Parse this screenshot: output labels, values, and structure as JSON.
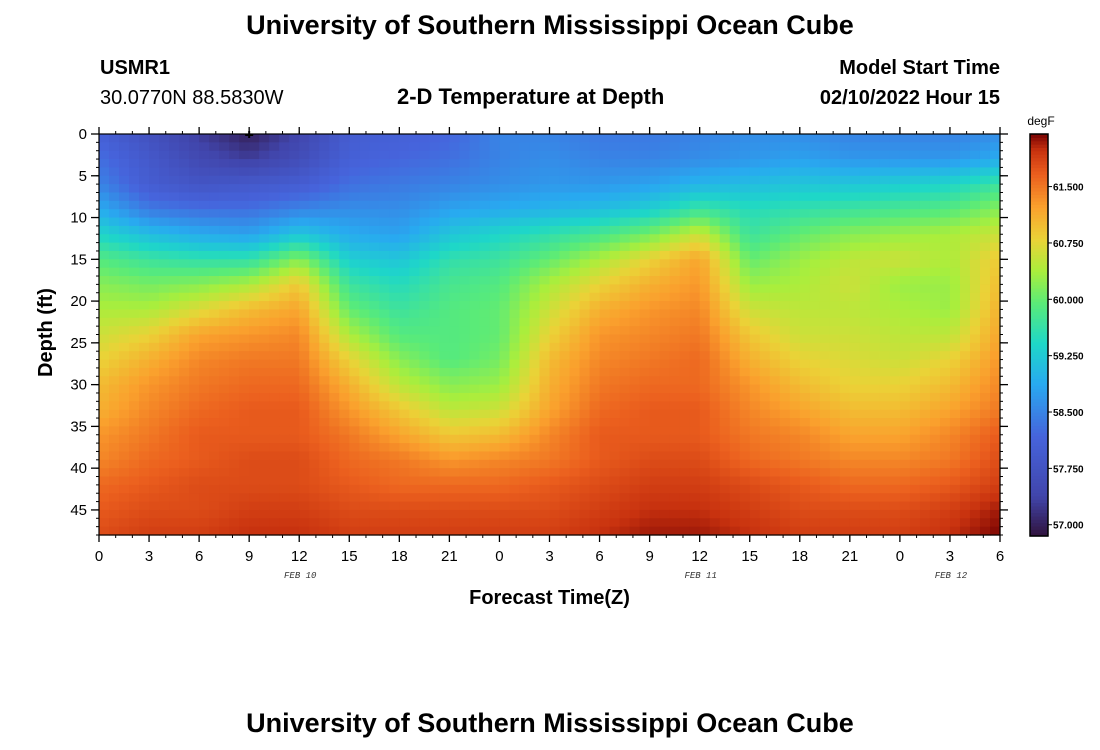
{
  "page": {
    "title_top": "University of Southern Mississippi Ocean Cube",
    "title_bottom": "University of Southern Mississippi Ocean Cube",
    "station_id": "USMR1",
    "station_coords": "30.0770N  88.5830W",
    "plot_title": "2-D Temperature at Depth",
    "model_start_label": "Model Start Time",
    "model_start_value": "02/10/2022 Hour 15"
  },
  "colors": {
    "background": "#ffffff",
    "frame": "#000000"
  },
  "chart_data": {
    "type": "heatmap",
    "title": "2-D Temperature at Depth",
    "xlabel": "Forecast Time(Z)",
    "ylabel": "Depth (ft)",
    "x_ticks": [
      "0",
      "3",
      "6",
      "9",
      "12",
      "15",
      "18",
      "21",
      "0",
      "3",
      "6",
      "9",
      "12",
      "15",
      "18",
      "21",
      "0",
      "3",
      "6"
    ],
    "x_range_hours": [
      0,
      54
    ],
    "date_labels": [
      {
        "text": "FEB 10",
        "hour": 12
      },
      {
        "text": "FEB 11",
        "hour": 36
      },
      {
        "text": "FEB 12",
        "hour": 51
      }
    ],
    "y_ticks": [
      0,
      5,
      10,
      15,
      20,
      25,
      30,
      35,
      40,
      45
    ],
    "y_range_ft": [
      0,
      48
    ],
    "y_inverted": true,
    "colorbar": {
      "unit": "degF",
      "range": [
        56.85,
        62.2
      ],
      "tick_labels": [
        "61.500",
        "60.750",
        "60.000",
        "59.250",
        "58.500",
        "57.750",
        "57.000"
      ],
      "tick_values": [
        61.5,
        60.75,
        60.0,
        59.25,
        58.5,
        57.75,
        57.0
      ]
    },
    "marker_hour": 9,
    "x_hours": [
      0,
      3,
      6,
      9,
      12,
      15,
      18,
      21,
      24,
      27,
      30,
      33,
      36,
      39,
      42,
      45,
      48,
      51,
      54
    ],
    "y_depths": [
      0,
      3,
      6,
      9,
      12,
      15,
      18,
      21,
      24,
      27,
      30,
      33,
      36,
      39,
      42,
      45,
      48
    ],
    "values": [
      [
        58.1,
        57.7,
        57.3,
        57.0,
        57.4,
        58.0,
        58.1,
        58.2,
        58.5,
        58.5,
        58.4,
        58.4,
        58.5,
        58.6,
        58.6,
        58.5,
        58.5,
        58.5,
        58.6
      ],
      [
        58.3,
        57.9,
        57.5,
        57.3,
        57.6,
        58.1,
        58.2,
        58.3,
        58.5,
        58.6,
        58.5,
        58.5,
        58.6,
        58.7,
        58.8,
        58.7,
        58.7,
        58.7,
        58.9
      ],
      [
        58.5,
        58.0,
        57.8,
        57.9,
        58.0,
        58.3,
        58.4,
        58.5,
        58.6,
        58.7,
        58.7,
        58.8,
        59.0,
        59.1,
        59.2,
        59.2,
        59.3,
        59.4,
        59.7
      ],
      [
        58.9,
        58.4,
        58.3,
        58.3,
        58.5,
        58.6,
        58.6,
        58.8,
        58.9,
        59.0,
        59.1,
        59.3,
        59.7,
        59.5,
        59.6,
        59.7,
        59.8,
        59.9,
        60.2
      ],
      [
        59.4,
        59.1,
        58.9,
        58.8,
        59.2,
        58.9,
        58.8,
        59.2,
        59.4,
        59.6,
        59.8,
        60.1,
        60.6,
        59.7,
        60.0,
        60.2,
        60.3,
        60.4,
        60.6
      ],
      [
        59.9,
        59.7,
        59.6,
        59.6,
        60.2,
        59.3,
        59.2,
        59.6,
        59.7,
        60.0,
        60.4,
        60.8,
        61.2,
        60.0,
        60.3,
        60.5,
        60.6,
        60.4,
        60.9
      ],
      [
        60.2,
        60.1,
        60.2,
        60.4,
        60.9,
        59.7,
        59.5,
        59.8,
        59.9,
        60.4,
        60.8,
        61.1,
        61.3,
        60.3,
        60.4,
        60.6,
        60.3,
        60.3,
        61.0
      ],
      [
        60.4,
        60.4,
        60.7,
        61.0,
        61.2,
        60.0,
        59.7,
        59.9,
        60.0,
        60.6,
        61.1,
        61.3,
        61.4,
        60.6,
        60.5,
        60.5,
        60.4,
        60.3,
        61.1
      ],
      [
        60.6,
        60.8,
        61.2,
        61.3,
        61.4,
        60.4,
        59.9,
        59.9,
        60.0,
        60.8,
        61.3,
        61.4,
        61.5,
        60.9,
        60.6,
        60.6,
        60.5,
        60.5,
        61.2
      ],
      [
        60.8,
        61.1,
        61.4,
        61.5,
        61.5,
        60.8,
        60.2,
        59.9,
        60.1,
        61.0,
        61.4,
        61.5,
        61.6,
        61.1,
        60.8,
        60.7,
        60.6,
        60.8,
        61.3
      ],
      [
        61.0,
        61.3,
        61.5,
        61.6,
        61.6,
        61.1,
        60.5,
        60.2,
        60.3,
        61.1,
        61.5,
        61.6,
        61.6,
        61.3,
        61.0,
        60.8,
        60.8,
        61.0,
        61.4
      ],
      [
        61.1,
        61.4,
        61.6,
        61.7,
        61.7,
        61.3,
        60.9,
        60.5,
        60.6,
        61.2,
        61.6,
        61.7,
        61.7,
        61.4,
        61.2,
        61.0,
        61.0,
        61.2,
        61.5
      ],
      [
        61.3,
        61.5,
        61.7,
        61.7,
        61.7,
        61.5,
        61.2,
        60.9,
        61.0,
        61.4,
        61.7,
        61.7,
        61.7,
        61.5,
        61.4,
        61.2,
        61.2,
        61.4,
        61.7
      ],
      [
        61.4,
        61.6,
        61.7,
        61.8,
        61.8,
        61.6,
        61.5,
        61.3,
        61.4,
        61.5,
        61.7,
        61.8,
        61.8,
        61.6,
        61.5,
        61.4,
        61.4,
        61.5,
        61.8
      ],
      [
        61.6,
        61.7,
        61.8,
        61.8,
        61.8,
        61.7,
        61.6,
        61.6,
        61.6,
        61.7,
        61.8,
        61.9,
        61.9,
        61.8,
        61.7,
        61.6,
        61.6,
        61.7,
        61.9
      ],
      [
        61.7,
        61.8,
        61.8,
        61.9,
        61.9,
        61.8,
        61.8,
        61.8,
        61.8,
        61.8,
        61.9,
        62.0,
        62.0,
        61.9,
        61.8,
        61.8,
        61.8,
        61.9,
        62.1
      ],
      [
        61.8,
        61.9,
        61.9,
        62.0,
        62.0,
        61.9,
        61.9,
        61.9,
        61.9,
        61.9,
        62.0,
        62.1,
        62.1,
        62.0,
        61.9,
        61.9,
        61.9,
        62.0,
        62.2
      ]
    ]
  }
}
